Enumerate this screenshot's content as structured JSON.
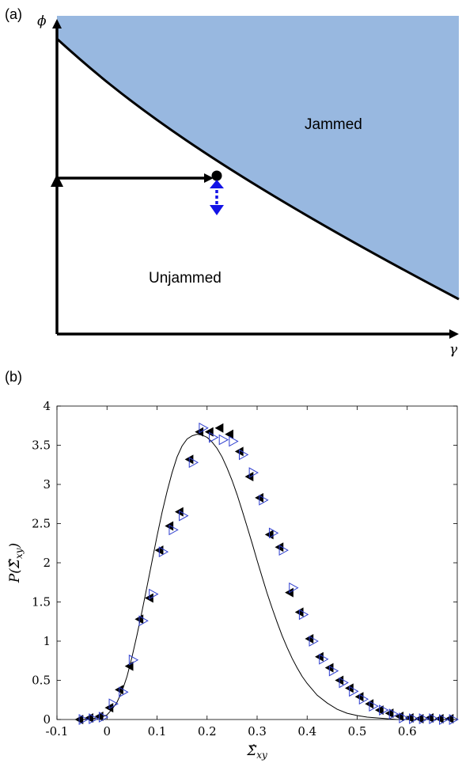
{
  "chart_data": [
    {
      "panel": "(a)",
      "type": "area",
      "x_symbol": "γ",
      "y_symbol": "ϕ",
      "regions": [
        {
          "label": "Jammed",
          "color": "#98b8e0"
        },
        {
          "label": "Unjammed",
          "color": "#ffffff"
        }
      ],
      "boundary_color": "#000000",
      "perturbation_arrow_color": "#1414e6"
    },
    {
      "panel": "(b)",
      "type": "scatter",
      "xlabel_base": "Σ̂",
      "xlabel_sub": "xy",
      "ylabel_pre": "P(Σ̂",
      "ylabel_sub": "xy",
      "ylabel_post": ")",
      "xlim": [
        -0.1,
        0.7
      ],
      "ylim": [
        0,
        4
      ],
      "xticks": [
        "-0.1",
        "0",
        "0.1",
        "0.2",
        "0.3",
        "0.4",
        "0.5",
        "0.6"
      ],
      "xtick_values": [
        -0.1,
        0,
        0.1,
        0.2,
        0.3,
        0.4,
        0.5,
        0.6
      ],
      "yticks": [
        "0",
        "0.5",
        "1",
        "1.5",
        "2",
        "2.5",
        "3",
        "3.5",
        "4"
      ],
      "ytick_values": [
        0,
        0.5,
        1,
        1.5,
        2,
        2.5,
        3,
        3.5,
        4
      ],
      "grid": false,
      "fit_curve": {
        "x": [
          -0.05,
          -0.03,
          -0.01,
          0.0,
          0.01,
          0.02,
          0.03,
          0.04,
          0.05,
          0.06,
          0.07,
          0.08,
          0.09,
          0.1,
          0.11,
          0.12,
          0.13,
          0.14,
          0.15,
          0.16,
          0.17,
          0.18,
          0.19,
          0.2,
          0.21,
          0.22,
          0.23,
          0.24,
          0.25,
          0.26,
          0.27,
          0.28,
          0.29,
          0.3,
          0.31,
          0.32,
          0.33,
          0.34,
          0.35,
          0.36,
          0.37,
          0.38,
          0.39,
          0.4,
          0.42,
          0.44,
          0.46,
          0.48,
          0.5,
          0.52,
          0.54,
          0.56,
          0.58,
          0.6,
          0.62,
          0.65,
          0.69
        ],
        "y": [
          0.0,
          0.01,
          0.03,
          0.06,
          0.13,
          0.22,
          0.36,
          0.55,
          0.8,
          1.08,
          1.38,
          1.7,
          2.02,
          2.34,
          2.64,
          2.91,
          3.15,
          3.35,
          3.49,
          3.58,
          3.62,
          3.64,
          3.63,
          3.6,
          3.54,
          3.46,
          3.35,
          3.21,
          3.05,
          2.87,
          2.67,
          2.46,
          2.25,
          2.03,
          1.82,
          1.61,
          1.42,
          1.24,
          1.07,
          0.92,
          0.78,
          0.66,
          0.55,
          0.46,
          0.31,
          0.21,
          0.13,
          0.08,
          0.05,
          0.03,
          0.02,
          0.01,
          0.0,
          0.0,
          0.0,
          0.0,
          0.0
        ]
      },
      "series": [
        {
          "marker": "filled-left-triangle",
          "color": "#000000",
          "x": [
            -0.055,
            -0.035,
            -0.015,
            0.005,
            0.025,
            0.045,
            0.065,
            0.085,
            0.105,
            0.125,
            0.145,
            0.165,
            0.185,
            0.205,
            0.225,
            0.245,
            0.265,
            0.285,
            0.305,
            0.325,
            0.345,
            0.365,
            0.385,
            0.405,
            0.425,
            0.445,
            0.465,
            0.485,
            0.505,
            0.525,
            0.545,
            0.565,
            0.585,
            0.605,
            0.625,
            0.645,
            0.665,
            0.685
          ],
          "y": [
            0.0,
            0.02,
            0.04,
            0.15,
            0.38,
            0.68,
            1.28,
            1.55,
            2.16,
            2.47,
            2.65,
            3.32,
            3.67,
            3.67,
            3.72,
            3.64,
            3.42,
            3.1,
            2.83,
            2.36,
            2.2,
            1.62,
            1.37,
            1.03,
            0.8,
            0.66,
            0.5,
            0.4,
            0.29,
            0.2,
            0.12,
            0.08,
            0.04,
            0.02,
            0.01,
            0.02,
            0.01,
            0.01
          ]
        },
        {
          "marker": "open-right-triangle",
          "color": "#2e3ecf",
          "x": [
            -0.048,
            -0.028,
            -0.008,
            0.012,
            0.032,
            0.052,
            0.072,
            0.092,
            0.112,
            0.132,
            0.152,
            0.172,
            0.192,
            0.212,
            0.232,
            0.252,
            0.272,
            0.292,
            0.312,
            0.332,
            0.352,
            0.372,
            0.392,
            0.412,
            0.432,
            0.452,
            0.472,
            0.492,
            0.512,
            0.532,
            0.552,
            0.572,
            0.592,
            0.612,
            0.632,
            0.652,
            0.672,
            0.692
          ],
          "y": [
            0.0,
            0.01,
            0.03,
            0.2,
            0.35,
            0.76,
            1.26,
            1.6,
            2.14,
            2.42,
            2.6,
            3.28,
            3.72,
            3.6,
            3.57,
            3.55,
            3.38,
            3.15,
            2.8,
            2.38,
            2.16,
            1.68,
            1.34,
            1.0,
            0.77,
            0.62,
            0.47,
            0.36,
            0.26,
            0.17,
            0.12,
            0.07,
            0.02,
            0.01,
            0.01,
            0.01,
            0.0,
            0.0
          ]
        }
      ]
    }
  ]
}
